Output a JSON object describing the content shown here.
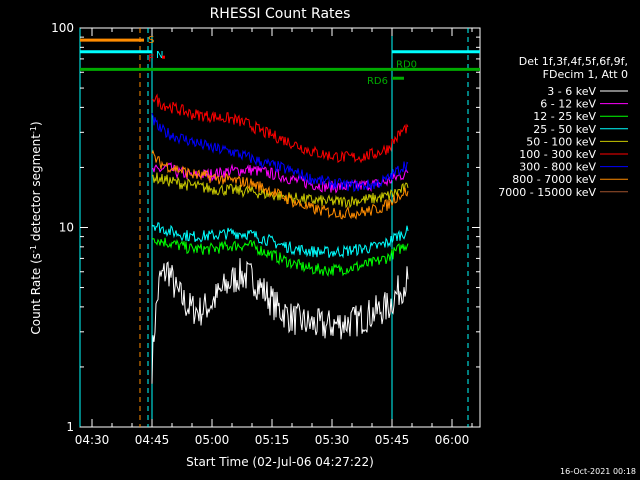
{
  "chart_data": {
    "type": "line",
    "title": "RHESSI Count Rates",
    "xlabel": "Start Time (02-Jul-06 04:27:22)",
    "ylabel": "Count Rate (s⁻¹ detector segment⁻¹)",
    "ylabel_parts": [
      "Count Rate (s",
      "-1",
      " detector segment",
      "-1",
      ")"
    ],
    "yscale": "log",
    "xlim": [
      "04:27",
      "06:07"
    ],
    "ylim": [
      1,
      100
    ],
    "x_ticks": [
      "04:30",
      "04:45",
      "05:00",
      "05:15",
      "05:30",
      "05:45",
      "06:00"
    ],
    "y_ticks": [
      "1",
      "10",
      "100"
    ],
    "timestamp": "16-Oct-2021 00:18",
    "legend_header": [
      "Det 1f,3f,4f,5f,6f,9f,",
      "FDecim 1, Att 0"
    ],
    "legend_placement": "right",
    "series": [
      {
        "name": "3 - 6 keV",
        "color": "#ffffff",
        "points": [
          [
            "04:45",
            2
          ],
          [
            "04:46",
            3.8
          ],
          [
            "04:47",
            5.5
          ],
          [
            "04:49",
            6.2
          ],
          [
            "04:51",
            4.8
          ],
          [
            "04:54",
            4.0
          ],
          [
            "04:57",
            3.8
          ],
          [
            "05:00",
            4.2
          ],
          [
            "05:04",
            5.2
          ],
          [
            "05:07",
            5.8
          ],
          [
            "05:10",
            5.6
          ],
          [
            "05:13",
            4.8
          ],
          [
            "05:16",
            4.0
          ],
          [
            "05:20",
            3.5
          ],
          [
            "05:24",
            3.3
          ],
          [
            "05:28",
            3.2
          ],
          [
            "05:32",
            3.3
          ],
          [
            "05:36",
            3.4
          ],
          [
            "05:40",
            3.7
          ],
          [
            "05:44",
            4.0
          ],
          [
            "05:46",
            4.6
          ],
          [
            "05:48",
            5.2
          ],
          [
            "05:49",
            5.5
          ]
        ]
      },
      {
        "name": "6 - 12 keV",
        "color": "#ff00ff",
        "points": [
          [
            "04:45",
            19
          ],
          [
            "04:47",
            19.5
          ],
          [
            "04:49",
            20
          ],
          [
            "04:51",
            19
          ],
          [
            "04:55",
            18.2
          ],
          [
            "05:00",
            18.5
          ],
          [
            "05:05",
            19.2
          ],
          [
            "05:09",
            19.5
          ],
          [
            "05:13",
            19
          ],
          [
            "05:17",
            18.2
          ],
          [
            "05:21",
            17.2
          ],
          [
            "05:25",
            16.5
          ],
          [
            "05:29",
            16
          ],
          [
            "05:33",
            16
          ],
          [
            "05:37",
            16.2
          ],
          [
            "05:41",
            16.5
          ],
          [
            "05:44",
            17
          ],
          [
            "05:46",
            17.8
          ],
          [
            "05:48",
            18.5
          ],
          [
            "05:49",
            18.8
          ]
        ]
      },
      {
        "name": "12 - 25 keV",
        "color": "#00ff00",
        "points": [
          [
            "04:45",
            9
          ],
          [
            "04:47",
            8.6
          ],
          [
            "04:50",
            8.3
          ],
          [
            "04:55",
            7.8
          ],
          [
            "05:00",
            7.8
          ],
          [
            "05:05",
            8.1
          ],
          [
            "05:09",
            8.2
          ],
          [
            "05:13",
            7.6
          ],
          [
            "05:17",
            7.0
          ],
          [
            "05:21",
            6.5
          ],
          [
            "05:25",
            6.2
          ],
          [
            "05:29",
            6.1
          ],
          [
            "05:33",
            6.2
          ],
          [
            "05:37",
            6.4
          ],
          [
            "05:41",
            6.7
          ],
          [
            "05:44",
            7.1
          ],
          [
            "05:46",
            7.6
          ],
          [
            "05:48",
            8.1
          ],
          [
            "05:49",
            8.3
          ]
        ]
      },
      {
        "name": "25 - 50 keV",
        "color": "#00ffff",
        "points": [
          [
            "04:45",
            10.5
          ],
          [
            "04:47",
            10.0
          ],
          [
            "04:50",
            9.5
          ],
          [
            "04:55",
            9.0
          ],
          [
            "05:00",
            9.1
          ],
          [
            "05:05",
            9.4
          ],
          [
            "05:09",
            9.3
          ],
          [
            "05:13",
            8.8
          ],
          [
            "05:17",
            8.2
          ],
          [
            "05:21",
            7.8
          ],
          [
            "05:25",
            7.6
          ],
          [
            "05:29",
            7.5
          ],
          [
            "05:33",
            7.6
          ],
          [
            "05:37",
            7.8
          ],
          [
            "05:41",
            8.0
          ],
          [
            "05:44",
            8.4
          ],
          [
            "05:46",
            9.0
          ],
          [
            "05:48",
            9.4
          ],
          [
            "05:49",
            9.6
          ]
        ]
      },
      {
        "name": "50 - 100 keV",
        "color": "#c8c800",
        "points": [
          [
            "04:45",
            18
          ],
          [
            "04:47",
            17.5
          ],
          [
            "04:50",
            17
          ],
          [
            "04:55",
            16.2
          ],
          [
            "05:00",
            15.6
          ],
          [
            "05:05",
            15.4
          ],
          [
            "05:09",
            15.2
          ],
          [
            "05:13",
            14.8
          ],
          [
            "05:17",
            14.4
          ],
          [
            "05:21",
            14.0
          ],
          [
            "05:25",
            13.7
          ],
          [
            "05:29",
            13.5
          ],
          [
            "05:33",
            13.5
          ],
          [
            "05:37",
            13.7
          ],
          [
            "05:41",
            14.0
          ],
          [
            "05:44",
            14.4
          ],
          [
            "05:46",
            15.0
          ],
          [
            "05:48",
            15.6
          ],
          [
            "05:49",
            15.8
          ]
        ]
      },
      {
        "name": "100 - 300 keV",
        "color": "#ff0000",
        "points": [
          [
            "04:45",
            46
          ],
          [
            "04:47",
            42
          ],
          [
            "04:50",
            40
          ],
          [
            "04:55",
            37
          ],
          [
            "05:00",
            36
          ],
          [
            "05:05",
            35
          ],
          [
            "05:09",
            33
          ],
          [
            "05:13",
            30
          ],
          [
            "05:17",
            28
          ],
          [
            "05:21",
            26
          ],
          [
            "05:25",
            24
          ],
          [
            "05:29",
            23
          ],
          [
            "05:33",
            22.5
          ],
          [
            "05:37",
            22.5
          ],
          [
            "05:41",
            23.5
          ],
          [
            "05:44",
            25
          ],
          [
            "05:46",
            28
          ],
          [
            "05:48",
            31
          ],
          [
            "05:49",
            32
          ]
        ]
      },
      {
        "name": "300 - 800 keV",
        "color": "#0000ff",
        "points": [
          [
            "04:45",
            35
          ],
          [
            "04:47",
            31
          ],
          [
            "04:50",
            29
          ],
          [
            "04:55",
            27
          ],
          [
            "05:00",
            25
          ],
          [
            "05:05",
            24
          ],
          [
            "05:09",
            22.5
          ],
          [
            "05:13",
            21
          ],
          [
            "05:17",
            20
          ],
          [
            "05:21",
            18.8
          ],
          [
            "05:25",
            17.5
          ],
          [
            "05:29",
            16.8
          ],
          [
            "05:33",
            16.3
          ],
          [
            "05:37",
            16.1
          ],
          [
            "05:41",
            16.5
          ],
          [
            "05:44",
            17.5
          ],
          [
            "05:46",
            19
          ],
          [
            "05:48",
            20.5
          ],
          [
            "05:49",
            21
          ]
        ]
      },
      {
        "name": "800 - 7000 keV",
        "color": "#ff8c00",
        "points": [
          [
            "04:45",
            23
          ],
          [
            "04:47",
            21
          ],
          [
            "04:50",
            20
          ],
          [
            "04:55",
            18.5
          ],
          [
            "05:00",
            17.8
          ],
          [
            "05:05",
            17.2
          ],
          [
            "05:09",
            16.8
          ],
          [
            "05:13",
            15.8
          ],
          [
            "05:17",
            14.5
          ],
          [
            "05:21",
            13.3
          ],
          [
            "05:25",
            12.4
          ],
          [
            "05:29",
            12.0
          ],
          [
            "05:33",
            11.8
          ],
          [
            "05:37",
            11.9
          ],
          [
            "05:41",
            12.3
          ],
          [
            "05:44",
            13.0
          ],
          [
            "05:46",
            14.2
          ],
          [
            "05:48",
            15.0
          ],
          [
            "05:49",
            15.2
          ]
        ]
      },
      {
        "name": "7000 - 15000 keV",
        "color": "#a0522d",
        "points": []
      }
    ],
    "flags": [
      {
        "label": "S",
        "color": "#ff8c00",
        "start": "04:27",
        "end": "04:43",
        "level": 87
      },
      {
        "label": "N",
        "color": "#00ffff",
        "start": "04:27",
        "end": "04:45",
        "level": 76
      },
      {
        "label": "F",
        "color": "#ff0000",
        "start": "04:47",
        "end": "04:47",
        "level": 71
      },
      {
        "label": "RD0",
        "color": "#00aa00",
        "start": "04:27",
        "end": "06:07",
        "level": 62
      },
      {
        "label": "RD6",
        "color": "#00aa00",
        "start": "05:45",
        "end": "05:48",
        "level": 56
      },
      {
        "label": "",
        "color": "#00ffff",
        "start": "05:45",
        "end": "06:07",
        "level": 76
      }
    ],
    "vertical_markers": [
      {
        "time": "04:27",
        "color": "#00ffff",
        "style": "solid"
      },
      {
        "time": "04:42",
        "color": "#ff8c00",
        "style": "dashed"
      },
      {
        "time": "04:44",
        "color": "#00ffff",
        "style": "dashed"
      },
      {
        "time": "04:45",
        "color": "#00ffff",
        "style": "solid"
      },
      {
        "time": "05:45",
        "color": "#00ffff",
        "style": "solid"
      },
      {
        "time": "06:04",
        "color": "#00ffff",
        "style": "dashed"
      }
    ]
  }
}
